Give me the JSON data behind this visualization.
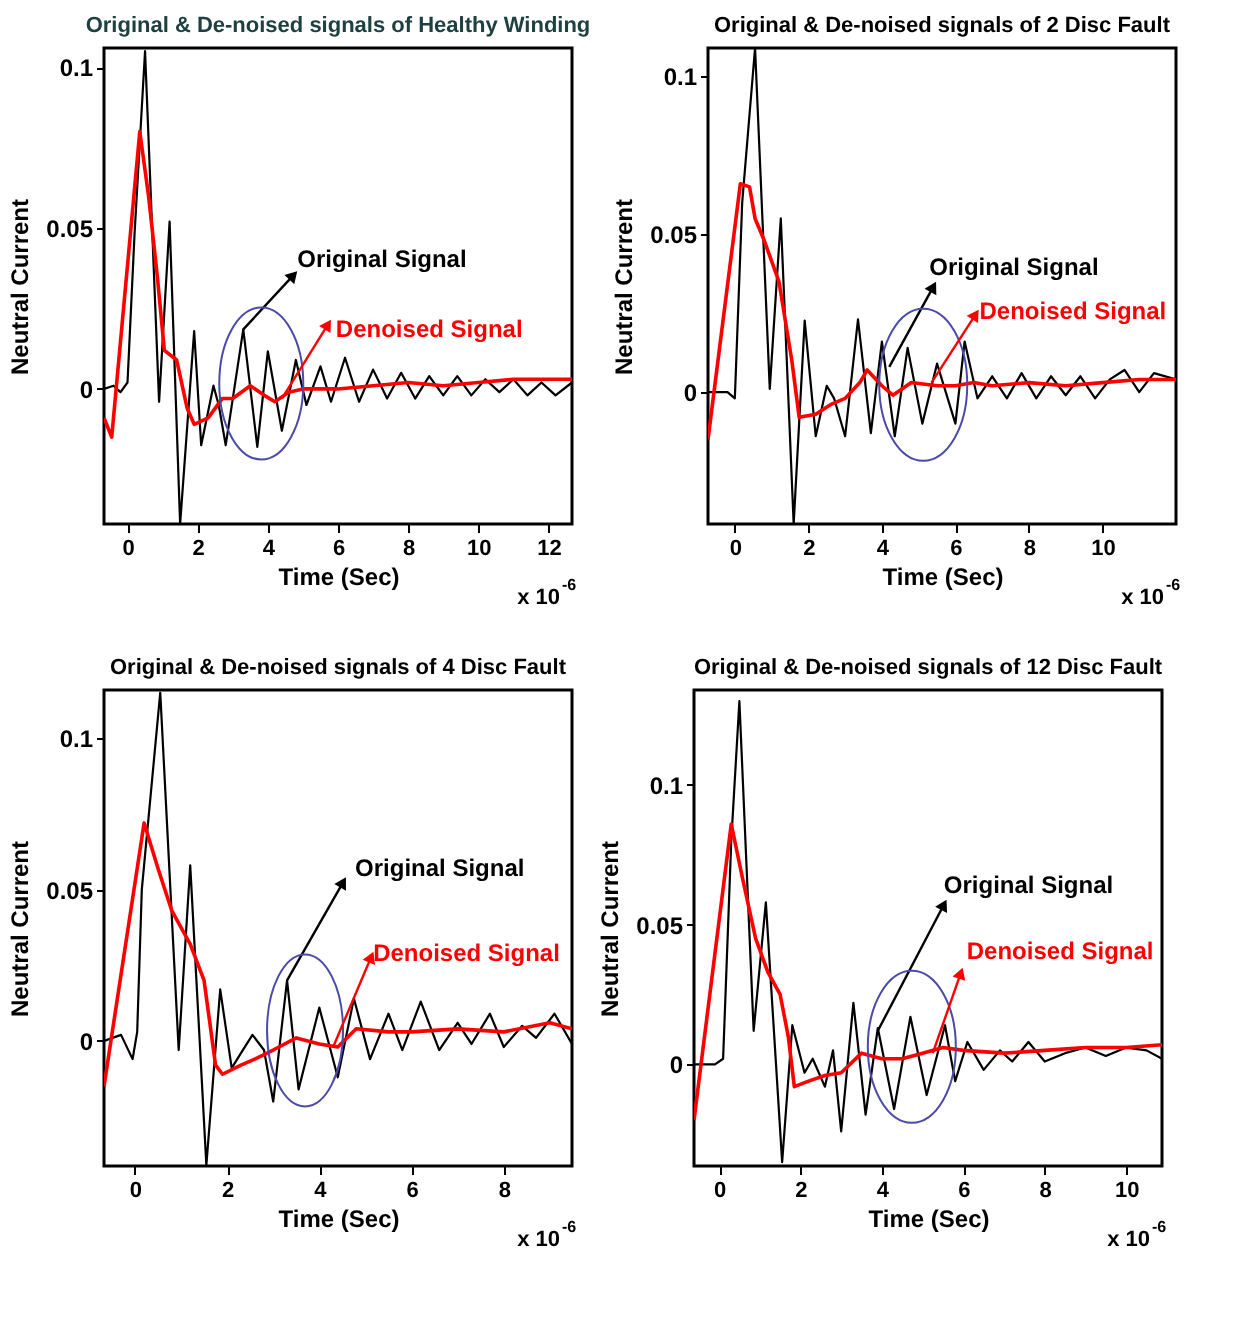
{
  "chart_data": [
    {
      "type": "line",
      "title": "Original & De-noised signals of Healthy Winding",
      "xlabel": "Time (Sec)",
      "ylabel": "Neutral Current",
      "xlim": [
        -0.67,
        12.67
      ],
      "xticks": [
        0,
        2,
        4,
        6,
        8,
        10,
        12
      ],
      "ylim": [
        -0.042,
        0.106
      ],
      "yticks": [
        0,
        0.05,
        0.1
      ],
      "series": [
        {
          "color": "#000000",
          "x": [
            -0.67,
            -0.4,
            -0.2,
            0,
            0.2,
            0.5,
            0.9,
            1.2,
            1.5,
            1.9,
            2.1,
            2.45,
            2.6,
            2.8,
            3.3,
            3.7,
            4.0,
            4.4,
            4.8,
            5.1,
            5.5,
            5.8,
            6.2,
            6.6,
            7.0,
            7.4,
            7.8,
            8.2,
            8.6,
            9.0,
            9.4,
            9.8,
            10.2,
            10.6,
            11.0,
            11.4,
            11.8,
            12.2,
            12.67
          ],
          "values": [
            0,
            0.001,
            -0.001,
            0.002,
            0.048,
            0.105,
            -0.004,
            0.052,
            -0.042,
            0.018,
            -0.0175,
            0.001,
            -0.005,
            -0.0175,
            0.0185,
            -0.018,
            0.0117,
            -0.013,
            0.009,
            -0.005,
            0.007,
            -0.004,
            0.0097,
            -0.004,
            0.006,
            -0.003,
            0.005,
            -0.003,
            0.004,
            -0.002,
            0.004,
            -0.002,
            0.003,
            -0.001,
            0.003,
            -0.002,
            0.002,
            -0.002,
            0.002
          ]
        },
        {
          "color": "#ff0000",
          "x": [
            -0.67,
            -0.45,
            0.35,
            0.6,
            0.85,
            1.05,
            1.4,
            1.7,
            1.9,
            2.3,
            2.7,
            3.0,
            3.5,
            3.9,
            4.2,
            4.6,
            5.0,
            6,
            7,
            8,
            9,
            10,
            11,
            12.67
          ],
          "values": [
            -0.009,
            -0.015,
            0.08,
            0.06,
            0.035,
            0.012,
            0.009,
            -0.006,
            -0.011,
            -0.009,
            -0.003,
            -0.003,
            0.001,
            -0.002,
            -0.004,
            -0.001,
            0,
            0,
            0.001,
            0.002,
            0.001,
            0.002,
            0.003,
            0.003
          ]
        }
      ],
      "annotations": [
        {
          "text": "Original Signal",
          "x": 3.3,
          "y": 0.0185
        },
        {
          "text": "Denoised Signal",
          "x": 4.4,
          "y": -0.003
        },
        "x 10$^{-6}$"
      ]
    },
    {
      "type": "line",
      "title": "Original & De-noised signals of 2 Disc Fault",
      "xlabel": "Time (Sec)",
      "ylabel": "Neutral Current",
      "xlim": [
        -0.73,
        12.0
      ],
      "xticks": [
        0,
        2,
        4,
        6,
        8,
        10
      ],
      "ylim": [
        -0.0418,
        0.109
      ],
      "yticks": [
        0,
        0.05,
        0.1
      ],
      "series": [
        {
          "color": "#000000",
          "x": [
            -0.73,
            -0.2,
            0,
            0.2,
            0.55,
            0.95,
            1.25,
            1.6,
            1.9,
            2.2,
            2.5,
            2.7,
            3.0,
            3.35,
            3.7,
            4.0,
            4.35,
            4.7,
            5.1,
            5.5,
            6.0,
            6.25,
            6.6,
            7.0,
            7.4,
            7.8,
            8.2,
            8.6,
            9.0,
            9.4,
            9.8,
            10.2,
            10.6,
            11.0,
            11.4,
            12.0
          ],
          "values": [
            0,
            0,
            -0.002,
            0.06,
            0.109,
            0.001,
            0.055,
            -0.0418,
            0.0226,
            -0.014,
            0.002,
            -0.002,
            -0.014,
            0.023,
            -0.013,
            0.016,
            -0.014,
            0.014,
            -0.01,
            0.009,
            -0.01,
            0.016,
            -0.002,
            0.005,
            -0.002,
            0.006,
            -0.002,
            0.005,
            -0.001,
            0.005,
            -0.002,
            0.004,
            0.007,
            0,
            0.006,
            0.004
          ]
        },
        {
          "color": "#ff0000",
          "x": [
            -0.73,
            0.15,
            0.4,
            0.55,
            0.8,
            1.2,
            1.55,
            1.75,
            2.2,
            2.6,
            3.0,
            3.4,
            3.6,
            4.0,
            4.3,
            4.8,
            5.5,
            6,
            6.5,
            7,
            8,
            9,
            10,
            11,
            12.0
          ],
          "values": [
            -0.015,
            0.066,
            0.065,
            0.055,
            0.048,
            0.035,
            0.01,
            -0.008,
            -0.007,
            -0.004,
            -0.002,
            0.003,
            0.007,
            0.002,
            -0.001,
            0.003,
            0.002,
            0.002,
            0.003,
            0.002,
            0.003,
            0.002,
            0.003,
            0.004,
            0.004
          ]
        }
      ],
      "annotations": [
        {
          "text": "Original Signal",
          "x": 4.2,
          "y": 0.008
        },
        {
          "text": "Denoised Signal",
          "x": 5.35,
          "y": 0.003
        },
        "x 10$^{-6}$"
      ]
    },
    {
      "type": "line",
      "title": "Original & De-noised signals of 4 Disc Fault",
      "xlabel": "Time (Sec)",
      "ylabel": "Neutral Current",
      "xlim": [
        -0.67,
        9.48
      ],
      "xticks": [
        0,
        2,
        4,
        6,
        8
      ],
      "ylim": [
        -0.0413,
        0.1159
      ],
      "yticks": [
        0,
        0.05,
        0.1
      ],
      "series": [
        {
          "color": "#000000",
          "x": [
            -0.67,
            -0.3,
            -0.05,
            0.05,
            0.15,
            0.55,
            0.95,
            1.2,
            1.55,
            1.85,
            2.1,
            2.3,
            2.55,
            2.8,
            3.0,
            3.3,
            3.55,
            4.0,
            4.4,
            4.75,
            5.1,
            5.5,
            5.8,
            6.2,
            6.6,
            7.0,
            7.3,
            7.7,
            8.0,
            8.4,
            8.7,
            9.1,
            9.48
          ],
          "values": [
            0,
            0.002,
            -0.006,
            0.003,
            0.05,
            0.115,
            -0.003,
            0.058,
            -0.041,
            0.017,
            -0.009,
            -0.004,
            0.002,
            -0.003,
            -0.02,
            0.02,
            -0.016,
            0.011,
            -0.012,
            0.014,
            -0.006,
            0.009,
            -0.003,
            0.013,
            -0.003,
            0.006,
            -0.001,
            0.009,
            -0.002,
            0.005,
            0.001,
            0.009,
            -0.001
          ]
        },
        {
          "color": "#ff0000",
          "x": [
            -0.67,
            0.2,
            0.5,
            0.8,
            1.2,
            1.5,
            1.75,
            1.9,
            2.3,
            2.6,
            3.0,
            3.5,
            4.0,
            4.4,
            4.8,
            5.5,
            6,
            7,
            8,
            9,
            9.48
          ],
          "values": [
            -0.015,
            0.072,
            0.057,
            0.043,
            0.032,
            0.02,
            -0.008,
            -0.011,
            -0.008,
            -0.006,
            -0.003,
            0.001,
            -0.001,
            -0.002,
            0.004,
            0.003,
            0.003,
            0.004,
            0.003,
            0.006,
            0.004
          ]
        }
      ],
      "annotations": [
        {
          "text": "Original Signal",
          "x": 3.3,
          "y": 0.02
        },
        {
          "text": "Denoised Signal",
          "x": 4.3,
          "y": -0.002
        },
        "x 10$^{-6}$"
      ]
    },
    {
      "type": "line",
      "title": "Original & De-noised signals of 12 Disc Fault",
      "xlabel": "Time (Sec)",
      "ylabel": "Neutral Current",
      "xlim": [
        -0.615,
        10.88
      ],
      "xticks": [
        0,
        2,
        4,
        6,
        8,
        10
      ],
      "ylim": [
        -0.0364,
        0.134
      ],
      "yticks": [
        0,
        0.05,
        0.1
      ],
      "series": [
        {
          "color": "#000000",
          "x": [
            -0.615,
            -0.1,
            0.1,
            0.3,
            0.5,
            0.85,
            1.15,
            1.55,
            1.8,
            2.1,
            2.3,
            2.6,
            2.8,
            3.0,
            3.3,
            3.6,
            3.9,
            4.3,
            4.7,
            5.1,
            5.55,
            5.8,
            6.1,
            6.5,
            6.9,
            7.2,
            7.6,
            8.0,
            8.5,
            9.0,
            9.5,
            10.0,
            10.5,
            10.88
          ],
          "values": [
            0,
            0,
            0.002,
            0.08,
            0.13,
            0.012,
            0.058,
            -0.035,
            0.014,
            -0.003,
            0.002,
            -0.008,
            0.005,
            -0.024,
            0.022,
            -0.018,
            0.013,
            -0.016,
            0.017,
            -0.011,
            0.014,
            -0.006,
            0.008,
            -0.002,
            0.005,
            0.001,
            0.008,
            0.001,
            0.004,
            0.006,
            0.003,
            0.006,
            0.005,
            0.002
          ]
        },
        {
          "color": "#ff0000",
          "x": [
            -0.615,
            0.3,
            0.6,
            0.9,
            1.2,
            1.5,
            1.7,
            1.85,
            2.2,
            2.6,
            3.0,
            3.5,
            4.0,
            4.5,
            5.0,
            5.5,
            6,
            7,
            8,
            9,
            10,
            10.88
          ],
          "values": [
            -0.02,
            0.086,
            0.065,
            0.045,
            0.033,
            0.025,
            0.01,
            -0.008,
            -0.006,
            -0.004,
            -0.003,
            0.004,
            0.002,
            0.002,
            0.004,
            0.006,
            0.005,
            0.004,
            0.005,
            0.006,
            0.006,
            0.007
          ]
        }
      ],
      "annotations": [
        {
          "text": "Original Signal",
          "x": 3.9,
          "y": 0.012
        },
        {
          "text": "Denoised Signal",
          "x": 5.25,
          "y": 0.004
        },
        "x 10$^{-6}$"
      ]
    }
  ]
}
